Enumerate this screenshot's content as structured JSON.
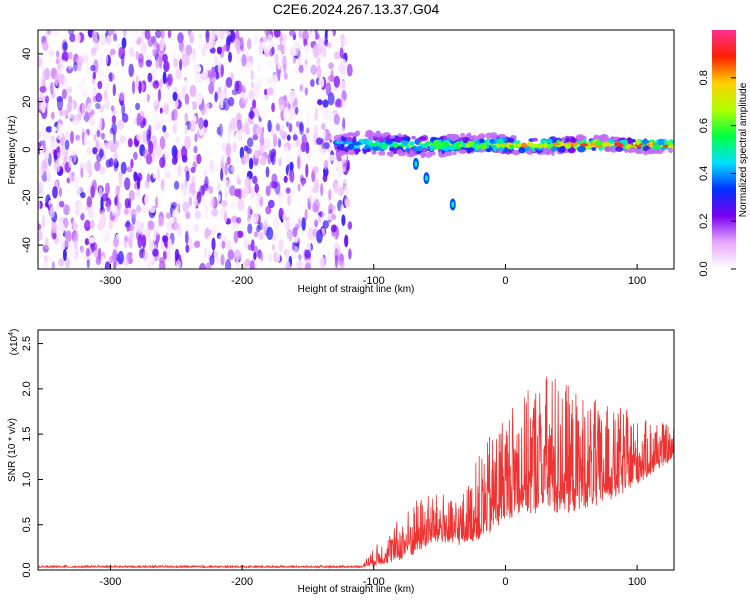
{
  "title": "C2E6.2024.267.13.37.G04",
  "chart_data": [
    {
      "type": "heatmap",
      "xlabel": "Height of straight line (km)",
      "ylabel": "Frequency (Hz)",
      "xlim": [
        -355,
        128
      ],
      "ylim": [
        -50,
        50
      ],
      "xticks": [
        -300,
        -200,
        -100,
        0,
        100
      ],
      "yticks": [
        -40,
        -20,
        0,
        20,
        40
      ],
      "noise_region_x": [
        -355,
        -118
      ],
      "signal_band_center_hz": 2,
      "signal_start_x": -128,
      "secondary_trace": [
        {
          "x": -68,
          "y": -6
        },
        {
          "x": -60,
          "y": -12
        },
        {
          "x": -40,
          "y": -23
        }
      ],
      "colorbar": {
        "label": "Normalized spectral amplitude",
        "range": [
          0,
          1
        ],
        "ticks": [
          "0.0",
          "0.2",
          "0.4",
          "0.6",
          "0.8"
        ],
        "colors": [
          "#ffffff",
          "#e8a8ff",
          "#7a00f0",
          "#0030ff",
          "#00e0ff",
          "#00ff40",
          "#b0ff00",
          "#ffd000",
          "#ff2000",
          "#ff3090"
        ]
      }
    },
    {
      "type": "line",
      "xlabel": "Height of straight line (km)",
      "ylabel": "SNR (10 * v/v)",
      "multiplier": "(x10",
      "multiplier_exp": "4",
      "xlim": [
        -355,
        128
      ],
      "ylim": [
        0,
        2.65
      ],
      "xticks": [
        -300,
        -200,
        -100,
        0,
        100
      ],
      "yticks": [
        "0.0",
        "0.5",
        "1.0",
        "1.5",
        "2.0",
        "2.5"
      ],
      "line_color": "#ee3333",
      "envelope": [
        {
          "x": -355,
          "base": 0.03,
          "amp": 0.02
        },
        {
          "x": -110,
          "base": 0.03,
          "amp": 0.02
        },
        {
          "x": -100,
          "base": 0.06,
          "amp": 0.2
        },
        {
          "x": -90,
          "base": 0.1,
          "amp": 0.3
        },
        {
          "x": -80,
          "base": 0.15,
          "amp": 0.45
        },
        {
          "x": -70,
          "base": 0.22,
          "amp": 0.6
        },
        {
          "x": -60,
          "base": 0.3,
          "amp": 0.55
        },
        {
          "x": -50,
          "base": 0.35,
          "amp": 0.55
        },
        {
          "x": -40,
          "base": 0.3,
          "amp": 0.5
        },
        {
          "x": -30,
          "base": 0.35,
          "amp": 0.6
        },
        {
          "x": -20,
          "base": 0.4,
          "amp": 0.9
        },
        {
          "x": -10,
          "base": 0.5,
          "amp": 1.1
        },
        {
          "x": 0,
          "base": 0.65,
          "amp": 1.2
        },
        {
          "x": 15,
          "base": 0.75,
          "amp": 1.35
        },
        {
          "x": 30,
          "base": 0.75,
          "amp": 1.6
        },
        {
          "x": 50,
          "base": 0.75,
          "amp": 1.4
        },
        {
          "x": 70,
          "base": 0.8,
          "amp": 1.1
        },
        {
          "x": 90,
          "base": 0.9,
          "amp": 0.9
        },
        {
          "x": 110,
          "base": 1.1,
          "amp": 0.6
        },
        {
          "x": 128,
          "base": 1.25,
          "amp": 0.35
        }
      ]
    }
  ]
}
